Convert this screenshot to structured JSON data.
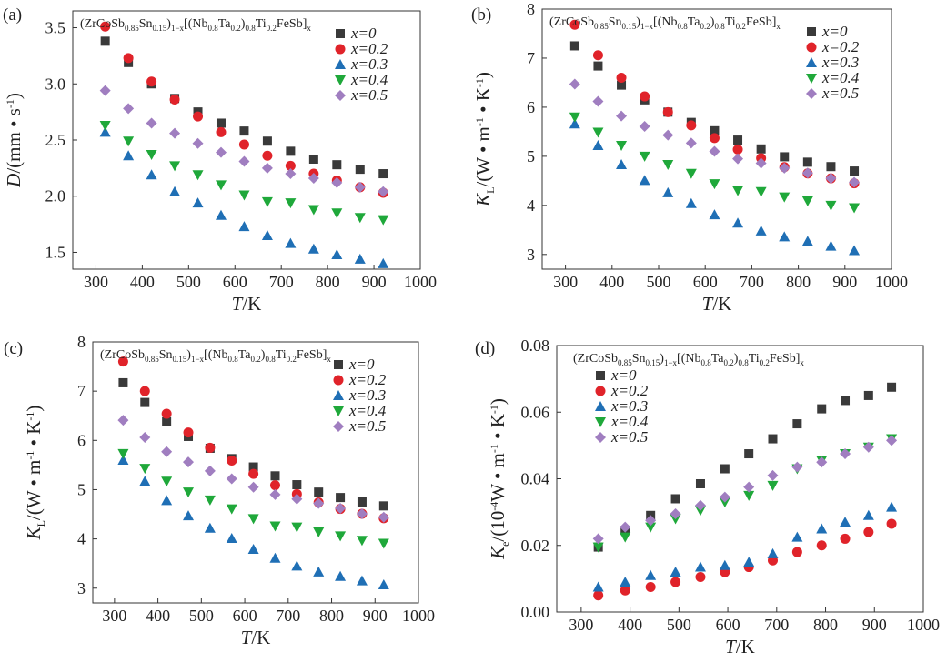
{
  "legend_title": {
    "base": "(ZrCoSb",
    "s1": "0.85",
    "p1": "Sn",
    "s2": "0.15",
    "p2": ")",
    "s3": "1−x",
    "p3": "[(Nb",
    "s4": "0.8",
    "p4": "Ta",
    "s5": "0.2",
    "p5": ")",
    "s6": "0.8",
    "p6": "Ti",
    "s7": "0.2",
    "p7": "FeSb]",
    "s8": "x"
  },
  "series_styles": [
    {
      "name": "x=0",
      "marker": "square",
      "color": "#3a3a3a"
    },
    {
      "name": "x=0.2",
      "marker": "circle",
      "color": "#e0232a"
    },
    {
      "name": "x=0.3",
      "marker": "triangle-up",
      "color": "#1f6fb5"
    },
    {
      "name": "x=0.4",
      "marker": "triangle-down",
      "color": "#1fa83a"
    },
    {
      "name": "x=0.5",
      "marker": "diamond",
      "color": "#a07ec0"
    }
  ],
  "chart_data": [
    {
      "panel": "(a)",
      "type": "scatter",
      "xlabel": {
        "main": "T",
        "rest": "/K"
      },
      "ylabel": {
        "main": "D",
        "rest": "/(mm • s",
        "sup": "-1",
        "end": ")"
      },
      "xlim": [
        250,
        1000
      ],
      "ylim": [
        1.35,
        3.65
      ],
      "xticks": [
        300,
        400,
        500,
        600,
        700,
        800,
        900,
        1000
      ],
      "yticks": [
        1.5,
        2.0,
        2.5,
        3.0,
        3.5
      ],
      "ytick_decimals": 1,
      "legend_position": "top-right",
      "x": [
        320,
        370,
        420,
        470,
        520,
        570,
        620,
        670,
        720,
        770,
        820,
        870,
        920
      ],
      "series": [
        {
          "name": "x=0",
          "values": [
            3.38,
            3.19,
            3.0,
            2.87,
            2.75,
            2.65,
            2.58,
            2.49,
            2.4,
            2.33,
            2.28,
            2.24,
            2.2
          ]
        },
        {
          "name": "x=0.2",
          "values": [
            3.51,
            3.23,
            3.02,
            2.86,
            2.71,
            2.57,
            2.46,
            2.36,
            2.27,
            2.2,
            2.14,
            2.08,
            2.03
          ]
        },
        {
          "name": "x=0.3",
          "values": [
            2.57,
            2.36,
            2.19,
            2.04,
            1.94,
            1.83,
            1.73,
            1.65,
            1.58,
            1.53,
            1.48,
            1.44,
            1.4
          ]
        },
        {
          "name": "x=0.4",
          "values": [
            2.63,
            2.49,
            2.37,
            2.27,
            2.19,
            2.1,
            2.01,
            1.95,
            1.94,
            1.88,
            1.85,
            1.81,
            1.79
          ]
        },
        {
          "name": "x=0.5",
          "values": [
            2.94,
            2.78,
            2.65,
            2.56,
            2.47,
            2.39,
            2.31,
            2.25,
            2.2,
            2.16,
            2.12,
            2.08,
            2.04
          ]
        }
      ]
    },
    {
      "panel": "(b)",
      "type": "scatter",
      "xlabel": {
        "main": "T",
        "rest": "/K"
      },
      "ylabel": {
        "main": "K",
        "sub": "L",
        "rest": "/(W • m",
        "sup": "-1",
        "mid": " • K",
        "sup2": "-1",
        "end": ")"
      },
      "xlim": [
        250,
        1000
      ],
      "ylim": [
        2.7,
        8.0
      ],
      "xticks": [
        300,
        400,
        500,
        600,
        700,
        800,
        900,
        1000
      ],
      "yticks": [
        3,
        4,
        5,
        6,
        7,
        8
      ],
      "ytick_decimals": 0,
      "legend_position": "top-right",
      "x": [
        320,
        370,
        420,
        470,
        520,
        570,
        620,
        670,
        720,
        770,
        820,
        870,
        920
      ],
      "series": [
        {
          "name": "x=0",
          "values": [
            7.25,
            6.84,
            6.45,
            6.15,
            5.9,
            5.69,
            5.52,
            5.33,
            5.15,
            4.99,
            4.88,
            4.79,
            4.7
          ]
        },
        {
          "name": "x=0.2",
          "values": [
            7.68,
            7.06,
            6.6,
            6.22,
            5.9,
            5.63,
            5.37,
            5.14,
            4.96,
            4.78,
            4.65,
            4.55,
            4.45
          ]
        },
        {
          "name": "x=0.3",
          "values": [
            5.66,
            5.22,
            4.83,
            4.51,
            4.26,
            4.04,
            3.81,
            3.64,
            3.48,
            3.36,
            3.27,
            3.17,
            3.08
          ]
        },
        {
          "name": "x=0.4",
          "values": [
            5.8,
            5.49,
            5.22,
            5.0,
            4.83,
            4.65,
            4.44,
            4.3,
            4.28,
            4.17,
            4.09,
            4.0,
            3.95
          ]
        },
        {
          "name": "x=0.5",
          "values": [
            6.47,
            6.12,
            5.82,
            5.61,
            5.43,
            5.27,
            5.1,
            4.95,
            4.86,
            4.76,
            4.66,
            4.55,
            4.47
          ]
        }
      ]
    },
    {
      "panel": "(c)",
      "type": "scatter",
      "xlabel": {
        "main": "T",
        "rest": "/K"
      },
      "ylabel": {
        "main": "K",
        "sub": "L",
        "rest": "/(W • m",
        "sup": "-1",
        "mid": " • K",
        "sup2": "-1",
        "end": ")"
      },
      "xlim": [
        250,
        1000
      ],
      "ylim": [
        2.7,
        8.0
      ],
      "xticks": [
        300,
        400,
        500,
        600,
        700,
        800,
        900,
        1000
      ],
      "yticks": [
        3,
        4,
        5,
        6,
        7,
        8
      ],
      "ytick_decimals": 0,
      "legend_position": "top-right",
      "x": [
        320,
        370,
        420,
        470,
        520,
        570,
        620,
        670,
        720,
        770,
        820,
        870,
        920
      ],
      "series": [
        {
          "name": "x=0",
          "values": [
            7.17,
            6.77,
            6.38,
            6.08,
            5.84,
            5.63,
            5.46,
            5.28,
            5.1,
            4.95,
            4.84,
            4.75,
            4.67
          ]
        },
        {
          "name": "x=0.2",
          "values": [
            7.6,
            7.0,
            6.54,
            6.16,
            5.85,
            5.59,
            5.32,
            5.09,
            4.91,
            4.74,
            4.61,
            4.51,
            4.42
          ]
        },
        {
          "name": "x=0.3",
          "values": [
            5.6,
            5.17,
            4.78,
            4.47,
            4.22,
            4.01,
            3.79,
            3.61,
            3.45,
            3.33,
            3.24,
            3.15,
            3.07
          ]
        },
        {
          "name": "x=0.4",
          "values": [
            5.73,
            5.43,
            5.17,
            4.95,
            4.79,
            4.61,
            4.41,
            4.26,
            4.24,
            4.14,
            4.06,
            3.97,
            3.91
          ]
        },
        {
          "name": "x=0.5",
          "values": [
            6.41,
            6.06,
            5.77,
            5.56,
            5.38,
            5.22,
            5.05,
            4.9,
            4.81,
            4.72,
            4.62,
            4.51,
            4.44
          ]
        }
      ]
    },
    {
      "panel": "(d)",
      "type": "scatter",
      "xlabel": {
        "main": "T",
        "rest": "/K"
      },
      "ylabel": {
        "main": "K",
        "sub": "e",
        "rest": "/(10",
        "sup": "-4",
        "mid": "W • m",
        "sup2": "-1",
        "mid2": " • K",
        "sup3": "-1",
        "end": ")"
      },
      "xlim": [
        250,
        1000
      ],
      "ylim": [
        0.0,
        0.08
      ],
      "xticks": [
        300,
        400,
        500,
        600,
        700,
        800,
        900,
        1000
      ],
      "yticks": [
        0.0,
        0.02,
        0.04,
        0.06,
        0.08
      ],
      "ytick_decimals": 2,
      "legend_position": "top-left",
      "x": [
        335,
        390,
        442,
        493,
        544,
        594,
        643,
        692,
        742,
        792,
        840,
        888,
        935
      ],
      "series": [
        {
          "name": "x=0",
          "values": [
            0.0195,
            0.0245,
            0.029,
            0.034,
            0.0385,
            0.043,
            0.0475,
            0.052,
            0.0565,
            0.061,
            0.0635,
            0.065,
            0.0675
          ]
        },
        {
          "name": "x=0.2",
          "values": [
            0.005,
            0.0065,
            0.0075,
            0.009,
            0.0105,
            0.012,
            0.0135,
            0.0155,
            0.018,
            0.02,
            0.022,
            0.024,
            0.0265
          ]
        },
        {
          "name": "x=0.3",
          "values": [
            0.0075,
            0.009,
            0.011,
            0.012,
            0.0135,
            0.014,
            0.015,
            0.0175,
            0.0225,
            0.025,
            0.027,
            0.029,
            0.0315
          ]
        },
        {
          "name": "x=0.4",
          "values": [
            0.0195,
            0.0225,
            0.0255,
            0.028,
            0.0305,
            0.033,
            0.035,
            0.038,
            0.043,
            0.0455,
            0.0475,
            0.0495,
            0.052
          ]
        },
        {
          "name": "x=0.5",
          "values": [
            0.022,
            0.0255,
            0.0275,
            0.0295,
            0.032,
            0.0345,
            0.0375,
            0.041,
            0.0435,
            0.045,
            0.0475,
            0.0495,
            0.0515
          ]
        }
      ]
    }
  ]
}
